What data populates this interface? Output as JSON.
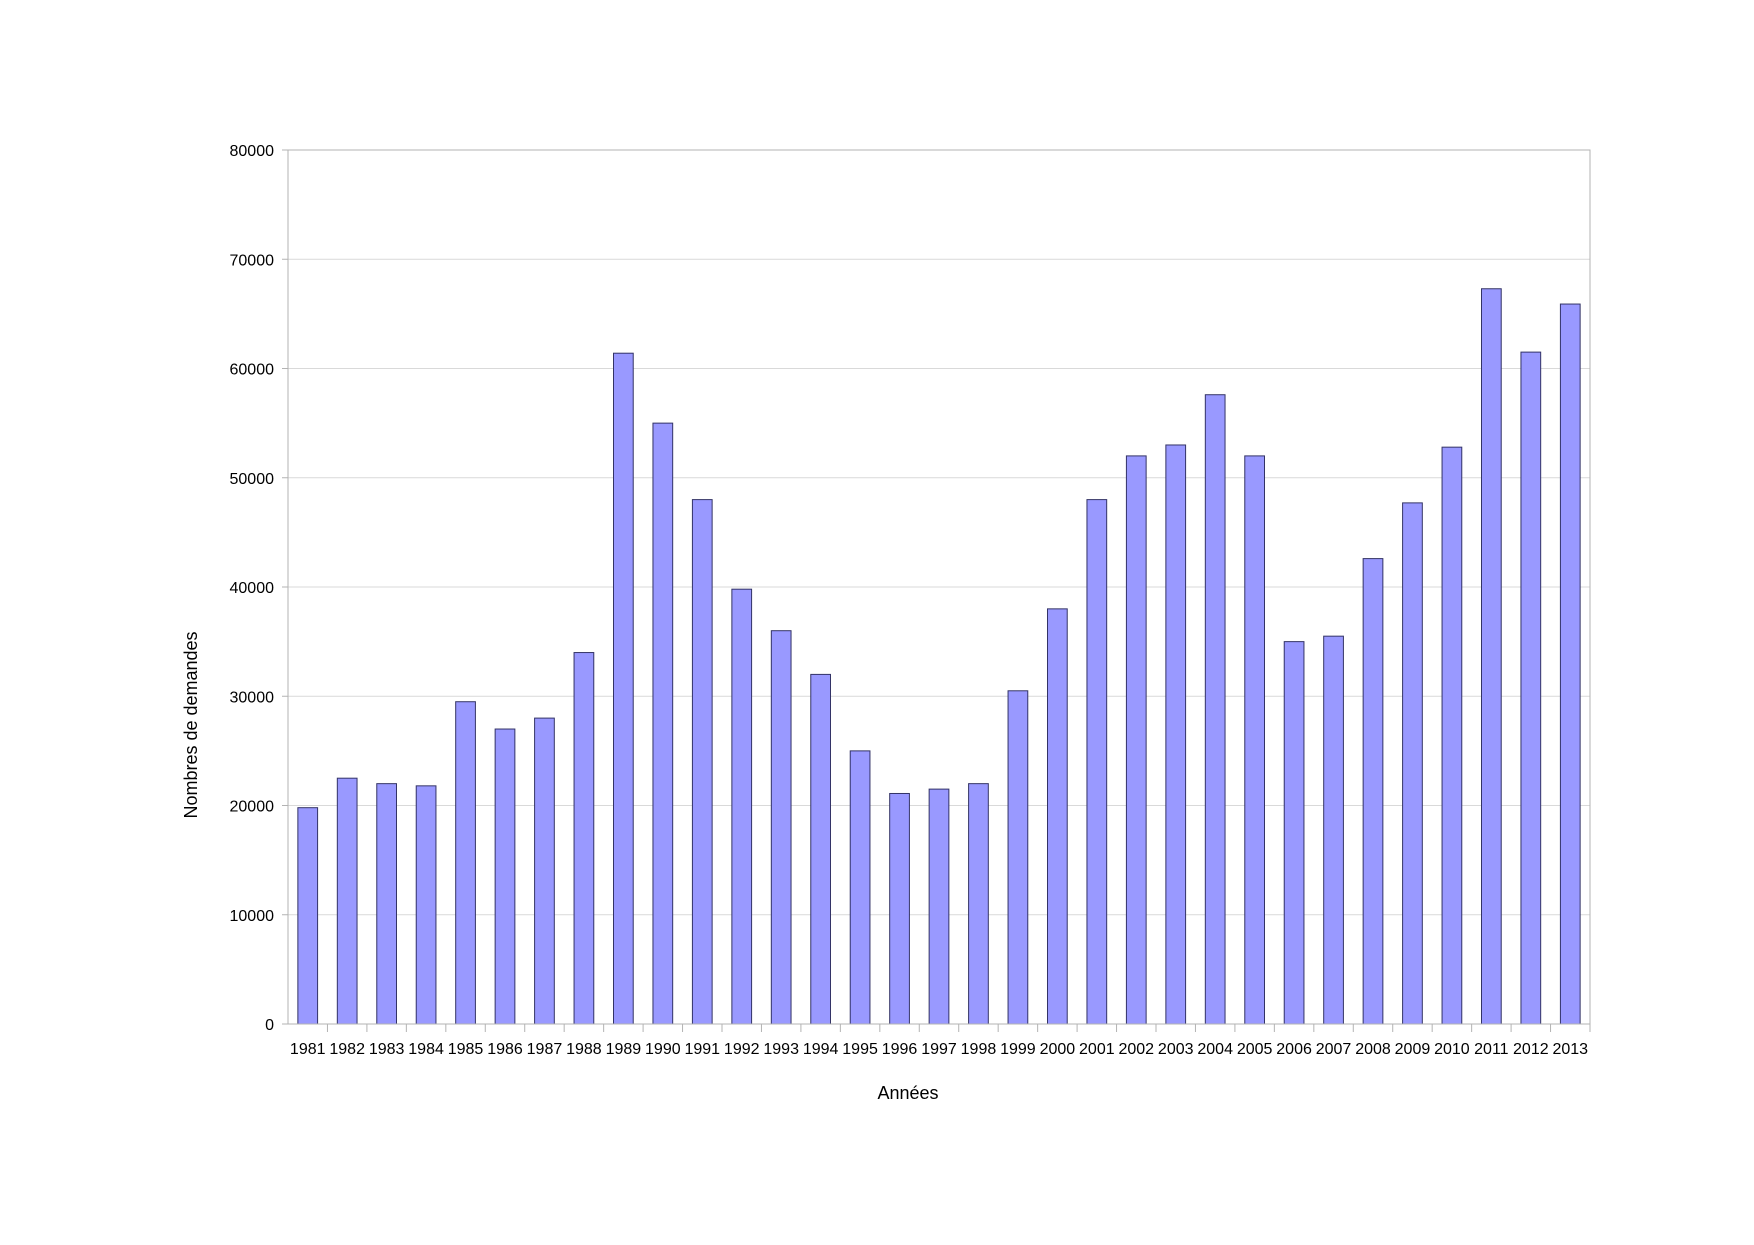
{
  "chart_data": {
    "type": "bar",
    "title": "",
    "xlabel": "Années",
    "ylabel": "Nombres de demandes",
    "ylim": [
      0,
      80000
    ],
    "yticks": [
      0,
      10000,
      20000,
      30000,
      40000,
      50000,
      60000,
      70000,
      80000
    ],
    "grid": true,
    "legend": "none",
    "categories": [
      "1981",
      "1982",
      "1983",
      "1984",
      "1985",
      "1986",
      "1987",
      "1988",
      "1989",
      "1990",
      "1991",
      "1992",
      "1993",
      "1994",
      "1995",
      "1996",
      "1997",
      "1998",
      "1999",
      "2000",
      "2001",
      "2002",
      "2003",
      "2004",
      "2005",
      "2006",
      "2007",
      "2008",
      "2009",
      "2010",
      "2011",
      "2012",
      "2013"
    ],
    "values": [
      19800,
      22500,
      22000,
      21800,
      29500,
      27000,
      28000,
      34000,
      61400,
      55000,
      48000,
      39800,
      36000,
      32000,
      25000,
      21100,
      21500,
      22000,
      30500,
      38000,
      48000,
      52000,
      53000,
      57600,
      52000,
      35000,
      35500,
      42600,
      47700,
      52800,
      67300,
      61500,
      65900
    ],
    "colors": {
      "bar_fill": "#9999ff",
      "bar_stroke": "#333366",
      "grid": "#d9d9d9",
      "axis": "#b3b3b3"
    }
  }
}
